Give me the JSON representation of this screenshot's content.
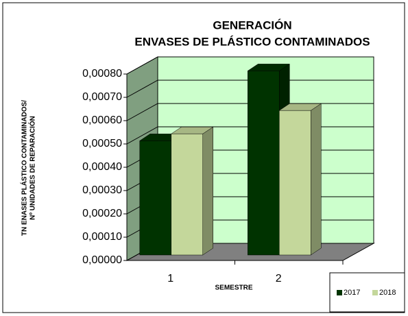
{
  "chart_data": {
    "type": "bar3d",
    "title": [
      "GENERACIÓN",
      "ENVASES DE PLÁSTICO CONTAMINADOS"
    ],
    "y_label": [
      "TN ENASES PLÁSTICO CONTAMINADOS/",
      "Nº UNIDADES DE REPARACIÓN"
    ],
    "x_label": "SEMESTRE",
    "categories": [
      "1",
      "2"
    ],
    "series": [
      {
        "name": "2017",
        "color": "#003300",
        "values": [
          0.00049,
          0.00079
        ]
      },
      {
        "name": "2018",
        "color": "#c4d79b",
        "values": [
          0.00052,
          0.00062
        ]
      }
    ],
    "ylim": [
      0,
      0.0008
    ],
    "yticks": [
      {
        "value": 0,
        "label": "0,00000"
      },
      {
        "value": 0.0001,
        "label": "0,00010"
      },
      {
        "value": 0.0002,
        "label": "0,00020"
      },
      {
        "value": 0.0003,
        "label": "0,00030"
      },
      {
        "value": 0.0004,
        "label": "0,00040"
      },
      {
        "value": 0.0005,
        "label": "0,00050"
      },
      {
        "value": 0.0006,
        "label": "0,00060"
      },
      {
        "value": 0.0007,
        "label": "0,00070"
      },
      {
        "value": 0.0008,
        "label": "0,00080"
      }
    ],
    "grid": true,
    "legend": "bottom-right"
  }
}
